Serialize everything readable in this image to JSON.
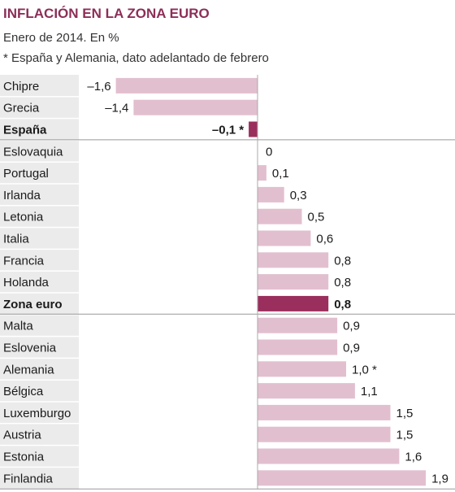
{
  "header": {
    "title": "INFLACIÓN EN LA ZONA EURO",
    "subtitle": "Enero de 2014. En %",
    "note": "* España y Alemania, dato adelantado de febrero"
  },
  "colors": {
    "title": "#8c2e58",
    "bar_default": "#e2bfcf",
    "bar_highlight": "#9a2e5c",
    "label_panel": "#ebebeb",
    "row_divider": "#ffffff",
    "axis_line": "#aaaaaa",
    "separator_line": "#999999"
  },
  "chart_data": {
    "type": "bar",
    "orientation": "horizontal",
    "unit": "%",
    "xlim": [
      -1.6,
      1.9
    ],
    "categories": [
      "Chipre",
      "Grecia",
      "España",
      "Eslovaquia",
      "Portugal",
      "Irlanda",
      "Letonia",
      "Italia",
      "Francia",
      "Holanda",
      "Zona euro",
      "Malta",
      "Eslovenia",
      "Alemania",
      "Bélgica",
      "Luxemburgo",
      "Austria",
      "Estonia",
      "Finlandia"
    ],
    "values": [
      -1.6,
      -1.4,
      -0.1,
      0,
      0.1,
      0.3,
      0.5,
      0.6,
      0.8,
      0.8,
      0.8,
      0.9,
      0.9,
      1.0,
      1.1,
      1.5,
      1.5,
      1.6,
      1.9
    ],
    "value_labels": [
      "–1,6",
      "–1,4",
      "–0,1 *",
      "0",
      "0,1",
      "0,3",
      "0,5",
      "0,6",
      "0,8",
      "0,8",
      "0,8",
      "0,9",
      "0,9",
      "1,0 *",
      "1,1",
      "1,5",
      "1,5",
      "1,6",
      "1,9"
    ],
    "highlighted": [
      "España",
      "Zona euro"
    ]
  }
}
